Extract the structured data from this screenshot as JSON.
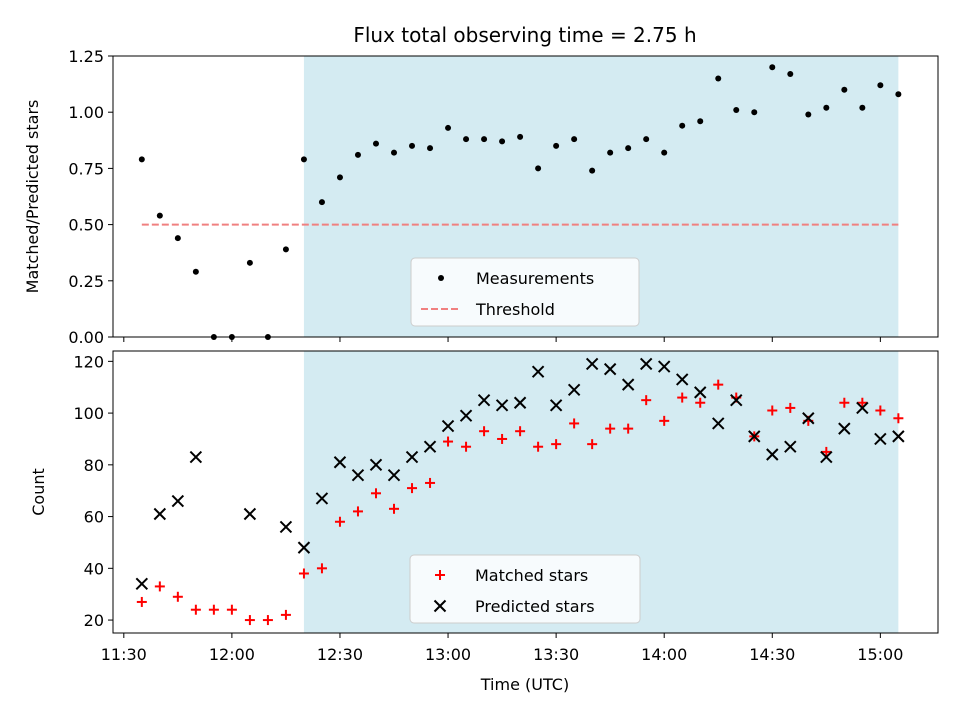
{
  "chart_data": [
    {
      "type": "scatter",
      "title": "Flux total observing time = 2.75 h",
      "xlabel": "",
      "ylabel": "Matched/Predicted stars",
      "xlim": [
        "11:27",
        "15:16"
      ],
      "ylim": [
        0,
        1.25
      ],
      "yticks": [
        "0.00",
        "0.25",
        "0.50",
        "0.75",
        "1.00",
        "1.25"
      ],
      "shaded_interval": [
        "12:20",
        "15:05"
      ],
      "shade_color": "#add8e6",
      "grid": false,
      "legend_position": "lower-center",
      "series": [
        {
          "name": "Measurements",
          "kind": "scatter",
          "marker": "dot",
          "color": "#000000",
          "x": [
            "11:35",
            "11:40",
            "11:45",
            "11:50",
            "11:55",
            "12:00",
            "12:05",
            "12:10",
            "12:15",
            "12:20",
            "12:25",
            "12:30",
            "12:35",
            "12:40",
            "12:45",
            "12:50",
            "12:55",
            "13:00",
            "13:05",
            "13:10",
            "13:15",
            "13:20",
            "13:25",
            "13:30",
            "13:35",
            "13:40",
            "13:45",
            "13:50",
            "13:55",
            "14:00",
            "14:05",
            "14:10",
            "14:15",
            "14:20",
            "14:25",
            "14:30",
            "14:35",
            "14:40",
            "14:45",
            "14:50",
            "14:55",
            "15:00",
            "15:05"
          ],
          "y": [
            0.79,
            0.54,
            0.44,
            0.29,
            0.0,
            0.0,
            0.33,
            0.0,
            0.39,
            0.79,
            0.6,
            0.71,
            0.81,
            0.86,
            0.82,
            0.85,
            0.84,
            0.93,
            0.88,
            0.88,
            0.87,
            0.89,
            0.75,
            0.85,
            0.88,
            0.74,
            0.82,
            0.84,
            0.88,
            0.82,
            0.94,
            0.96,
            1.15,
            1.01,
            1.0,
            1.2,
            1.17,
            0.99,
            1.02,
            1.1,
            1.02,
            1.12,
            1.08
          ]
        },
        {
          "name": "Threshold",
          "kind": "line",
          "style": "dashed",
          "color": "#f08080",
          "x": [
            "11:35",
            "15:05"
          ],
          "y": [
            0.5,
            0.5
          ]
        }
      ]
    },
    {
      "type": "scatter",
      "title": "",
      "xlabel": "Time (UTC)",
      "ylabel": "Count",
      "xlim": [
        "11:27",
        "15:16"
      ],
      "ylim": [
        15,
        124
      ],
      "yticks": [
        "20",
        "40",
        "60",
        "80",
        "100",
        "120"
      ],
      "xticks": [
        "11:30",
        "12:00",
        "12:30",
        "13:00",
        "13:30",
        "14:00",
        "14:30",
        "15:00"
      ],
      "shaded_interval": [
        "12:20",
        "15:05"
      ],
      "shade_color": "#add8e6",
      "grid": false,
      "legend_position": "lower-center",
      "series": [
        {
          "name": "Matched stars",
          "kind": "scatter",
          "marker": "plus",
          "color": "#ff0000",
          "x": [
            "11:35",
            "11:40",
            "11:45",
            "11:50",
            "11:55",
            "12:00",
            "12:05",
            "12:10",
            "12:15",
            "12:20",
            "12:25",
            "12:30",
            "12:35",
            "12:40",
            "12:45",
            "12:50",
            "12:55",
            "13:00",
            "13:05",
            "13:10",
            "13:15",
            "13:20",
            "13:25",
            "13:30",
            "13:35",
            "13:40",
            "13:45",
            "13:50",
            "13:55",
            "14:00",
            "14:05",
            "14:10",
            "14:15",
            "14:20",
            "14:25",
            "14:30",
            "14:35",
            "14:40",
            "14:45",
            "14:50",
            "14:55",
            "15:00",
            "15:05"
          ],
          "y": [
            27,
            33,
            29,
            24,
            24,
            24,
            20,
            20,
            22,
            38,
            40,
            58,
            62,
            69,
            63,
            71,
            73,
            89,
            87,
            93,
            90,
            93,
            87,
            88,
            96,
            88,
            94,
            94,
            105,
            97,
            106,
            104,
            111,
            106,
            91,
            101,
            102,
            97,
            85,
            104,
            104,
            101,
            98
          ]
        },
        {
          "name": "Predicted stars",
          "kind": "scatter",
          "marker": "x",
          "color": "#000000",
          "x": [
            "11:35",
            "11:40",
            "11:45",
            "11:50",
            "12:05",
            "12:15",
            "12:20",
            "12:25",
            "12:30",
            "12:35",
            "12:40",
            "12:45",
            "12:50",
            "12:55",
            "13:00",
            "13:05",
            "13:10",
            "13:15",
            "13:20",
            "13:25",
            "13:30",
            "13:35",
            "13:40",
            "13:45",
            "13:50",
            "13:55",
            "14:00",
            "14:05",
            "14:10",
            "14:15",
            "14:20",
            "14:25",
            "14:30",
            "14:35",
            "14:40",
            "14:45",
            "14:50",
            "14:55",
            "15:00",
            "15:05"
          ],
          "y": [
            34,
            61,
            66,
            83,
            61,
            56,
            48,
            67,
            81,
            76,
            80,
            76,
            83,
            87,
            95,
            99,
            105,
            103,
            104,
            116,
            103,
            109,
            119,
            117,
            111,
            119,
            118,
            113,
            108,
            96,
            105,
            91,
            84,
            87,
            98,
            83,
            94,
            102,
            90,
            91
          ]
        }
      ]
    }
  ]
}
